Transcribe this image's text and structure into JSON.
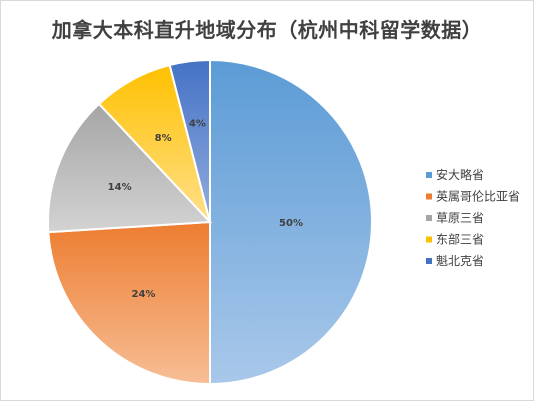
{
  "chart_data": {
    "type": "pie",
    "title": "加拿大本科直升地域分布（杭州中科留学数据）",
    "categories": [
      "安大略省",
      "英属哥伦比亚省",
      "草原三省",
      "东部三省",
      "魁北克省"
    ],
    "values": [
      50,
      24,
      14,
      8,
      4
    ],
    "labels": [
      "50%",
      "24%",
      "14%",
      "8%",
      "4%"
    ],
    "colors": [
      [
        "#5b9bd5",
        "#a9c8ea"
      ],
      [
        "#ed7d31",
        "#f7be95"
      ],
      [
        "#a5a5a5",
        "#d3d3d3"
      ],
      [
        "#ffc000",
        "#ffe08a"
      ],
      [
        "#4472c4",
        "#93ade0"
      ]
    ],
    "start_angle_deg": 0,
    "direction": "clockwise",
    "legend_position": "right"
  }
}
